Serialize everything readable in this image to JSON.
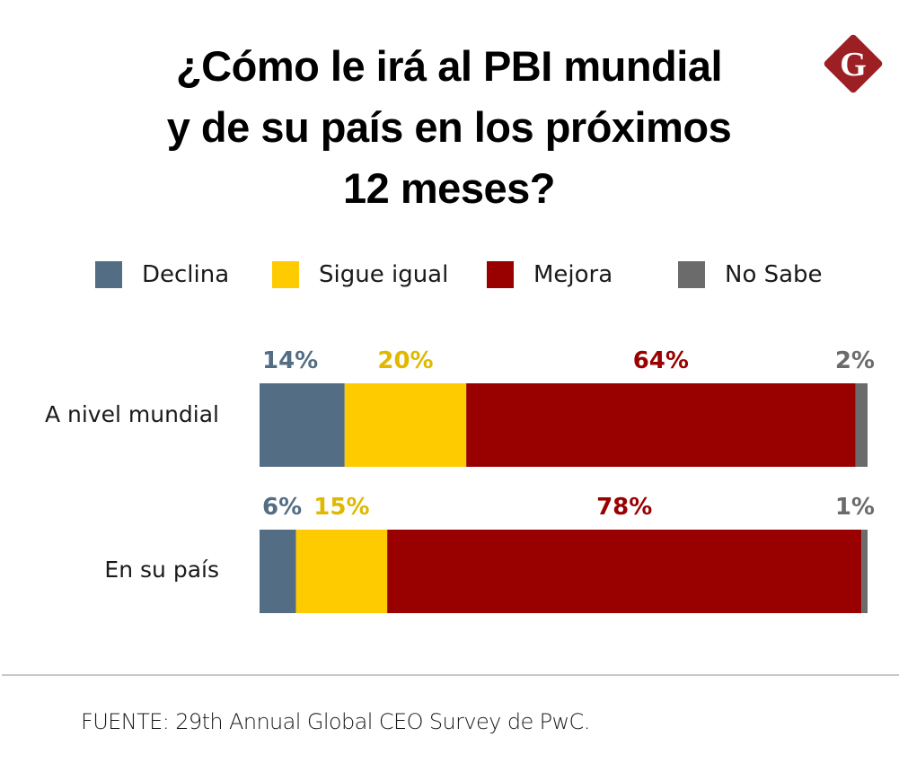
{
  "header": {
    "title_lines": [
      "¿Cómo le irá al PBI mundial",
      "y de su país en los próximos",
      "12 meses?"
    ],
    "logo": {
      "icon": "g-diamond-logo-icon",
      "letter": "G",
      "color": "#9c1f24"
    }
  },
  "legend": [
    {
      "label": "Declina",
      "color": "#536d85"
    },
    {
      "label": "Sigue igual",
      "color": "#fecb00"
    },
    {
      "label": "Mejora",
      "color": "#990000"
    },
    {
      "label": "No Sabe",
      "color": "#6b6b6b"
    }
  ],
  "chart_data": {
    "type": "bar",
    "orientation": "horizontal",
    "stacked": true,
    "title": "¿Cómo le irá al PBI mundial y de su país en los próximos 12 meses?",
    "categories": [
      "A nivel mundial",
      "En su país"
    ],
    "series": [
      {
        "name": "Declina",
        "color": "#536d85",
        "label_color": "#536d85",
        "values": [
          14,
          6
        ],
        "labels": [
          "14%",
          "6%"
        ]
      },
      {
        "name": "Sigue igual",
        "color": "#fecb00",
        "label_color": "#e0b800",
        "values": [
          20,
          15
        ],
        "labels": [
          "20%",
          "15%"
        ]
      },
      {
        "name": "Mejora",
        "color": "#990000",
        "label_color": "#990000",
        "values": [
          64,
          78
        ],
        "labels": [
          "64%",
          "78%"
        ]
      },
      {
        "name": "No Sabe",
        "color": "#6b6b6b",
        "label_color": "#6b6b6b",
        "values": [
          2,
          1
        ],
        "labels": [
          "2%",
          "1%"
        ]
      }
    ],
    "xlim": [
      0,
      100
    ],
    "grid": false,
    "legend_position": "top",
    "xlabel": "",
    "ylabel": ""
  },
  "footer": {
    "source": "FUENTE: 29th Annual Global CEO Survey de PwC."
  }
}
